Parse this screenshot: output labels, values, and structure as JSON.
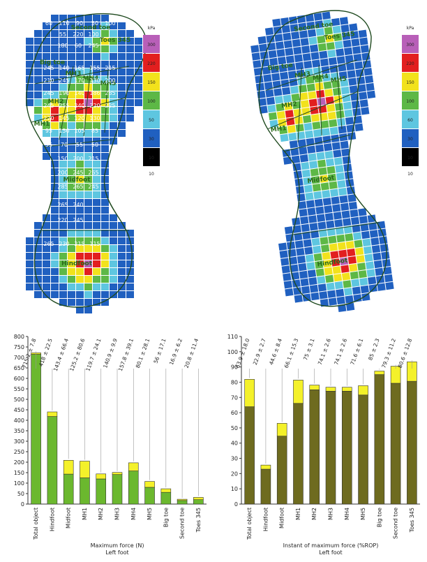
{
  "pressure_maps": [
    {
      "name": "left-map",
      "colorbar": {
        "unit": "kPa",
        "bands": [
          {
            "label": "300",
            "color": "#b85fb8"
          },
          {
            "label": "220",
            "color": "#e21f1f"
          },
          {
            "label": "150",
            "color": "#f2e21c"
          },
          {
            "label": "100",
            "color": "#5db846"
          },
          {
            "label": "50",
            "color": "#5ec6e0"
          },
          {
            "label": "30",
            "color": "#2060c0"
          },
          {
            "label": "10",
            "color": "#000000"
          }
        ],
        "bottom_label": "10"
      },
      "region_labels": [
        "Second toe",
        "Toes 345",
        "Big toe",
        "MH5",
        "MH4",
        "MH3",
        "MH2",
        "MH1",
        "Midfoot",
        "Hindfoot"
      ],
      "cell_values": [
        "60",
        "110",
        "90",
        "50",
        "100",
        "55",
        "220",
        "100",
        "180",
        "60",
        "245",
        "245",
        "140",
        "165",
        "155",
        "215",
        "210",
        "245",
        "170",
        "130",
        "200",
        "245",
        "190",
        "140",
        "186",
        "285",
        "245",
        "255",
        "240",
        "220",
        "225",
        "220",
        "145",
        "120",
        "130",
        "95",
        "150",
        "105",
        "85",
        "55",
        "70",
        "55",
        "50",
        "150",
        "200",
        "215",
        "200",
        "245",
        "265",
        "285",
        "265",
        "245",
        "265",
        "240",
        "220",
        "245",
        "265",
        "230",
        "215",
        "115"
      ]
    },
    {
      "name": "right-map",
      "colorbar": {
        "unit": "kPa",
        "bands": [
          {
            "label": "300",
            "color": "#b85fb8"
          },
          {
            "label": "220",
            "color": "#e21f1f"
          },
          {
            "label": "150",
            "color": "#f2e21c"
          },
          {
            "label": "100",
            "color": "#5db846"
          },
          {
            "label": "60",
            "color": "#5ec6e0"
          },
          {
            "label": "30",
            "color": "#2060c0"
          },
          {
            "label": "10",
            "color": "#000000"
          }
        ],
        "bottom_label": "10"
      },
      "region_labels": [
        "Second toe",
        "Toes 345",
        "Big toe",
        "MH5",
        "MH4",
        "MH3",
        "MH2",
        "MH1",
        "Midfoot",
        "Hindfoot"
      ]
    }
  ],
  "chart_data": [
    {
      "type": "bar",
      "stacked": true,
      "title": "",
      "xlabel": "Maximum force (N)",
      "xlabel2": "Left foot",
      "ylabel": "",
      "ylim": [
        0,
        800
      ],
      "yticks": [
        0,
        50,
        100,
        150,
        200,
        250,
        300,
        350,
        400,
        450,
        500,
        550,
        600,
        650,
        700,
        750,
        800
      ],
      "categories": [
        "Total object",
        "Hindfoot",
        "Midfoot",
        "MH1",
        "MH2",
        "MH3",
        "MH4",
        "MH5",
        "Big toe",
        "Second toe",
        "Toes 345"
      ],
      "annotations": [
        "715.2 ± 7.8",
        "418 ± 22.5",
        "143.4 ± 66.4",
        "125.2 ± 80.6",
        "119.7 ± 24.1",
        "140.9 ± 9.9",
        "157.8 ± 39.1",
        "80.1 ± 28.1",
        "56 ± 17.1",
        "16.9 ± 6.2",
        "20.8 ± 11.4"
      ],
      "series": [
        {
          "values": [
            715,
            418,
            143,
            125,
            120,
            141,
            158,
            80,
            56,
            17,
            21
          ],
          "color": "#6bb82e"
        },
        {
          "values": [
            7,
            22,
            66,
            80,
            24,
            10,
            39,
            28,
            17,
            6,
            11
          ],
          "color": "#f4f12a"
        }
      ]
    },
    {
      "type": "bar",
      "stacked": true,
      "title": "",
      "xlabel": "Instant of maximum force (%ROP)",
      "xlabel2": "Left foot",
      "ylabel": "",
      "ylim": [
        0,
        110
      ],
      "yticks": [
        0,
        10,
        20,
        30,
        40,
        50,
        60,
        70,
        80,
        90,
        100,
        110
      ],
      "categories": [
        "Total object",
        "Hindfoot",
        "Midfoot",
        "MH1",
        "MH2",
        "MH3",
        "MH4",
        "MH5",
        "Big toe",
        "Second toe",
        "Toes 345"
      ],
      "annotations": [
        "63.9 ± 18.0",
        "22.9 ± 2.7",
        "44.6 ± 8.4",
        "66.1 ± 15.3",
        "75 ± 3.1",
        "74.1 ± 2.6",
        "74.1 ± 2.6",
        "71.6 ± 6.1",
        "85 ± 2.3",
        "79.3 ± 11.2",
        "80.6 ± 12.8"
      ],
      "series": [
        {
          "values": [
            63.9,
            22.9,
            44.6,
            66.1,
            75,
            74.1,
            74.1,
            71.6,
            85,
            79.3,
            80.6
          ],
          "color": "#6e6b1f"
        },
        {
          "values": [
            18.0,
            2.7,
            8.4,
            15.3,
            3.1,
            2.6,
            2.6,
            6.1,
            2.3,
            11.2,
            12.8
          ],
          "color": "#f4f12a"
        }
      ]
    }
  ]
}
